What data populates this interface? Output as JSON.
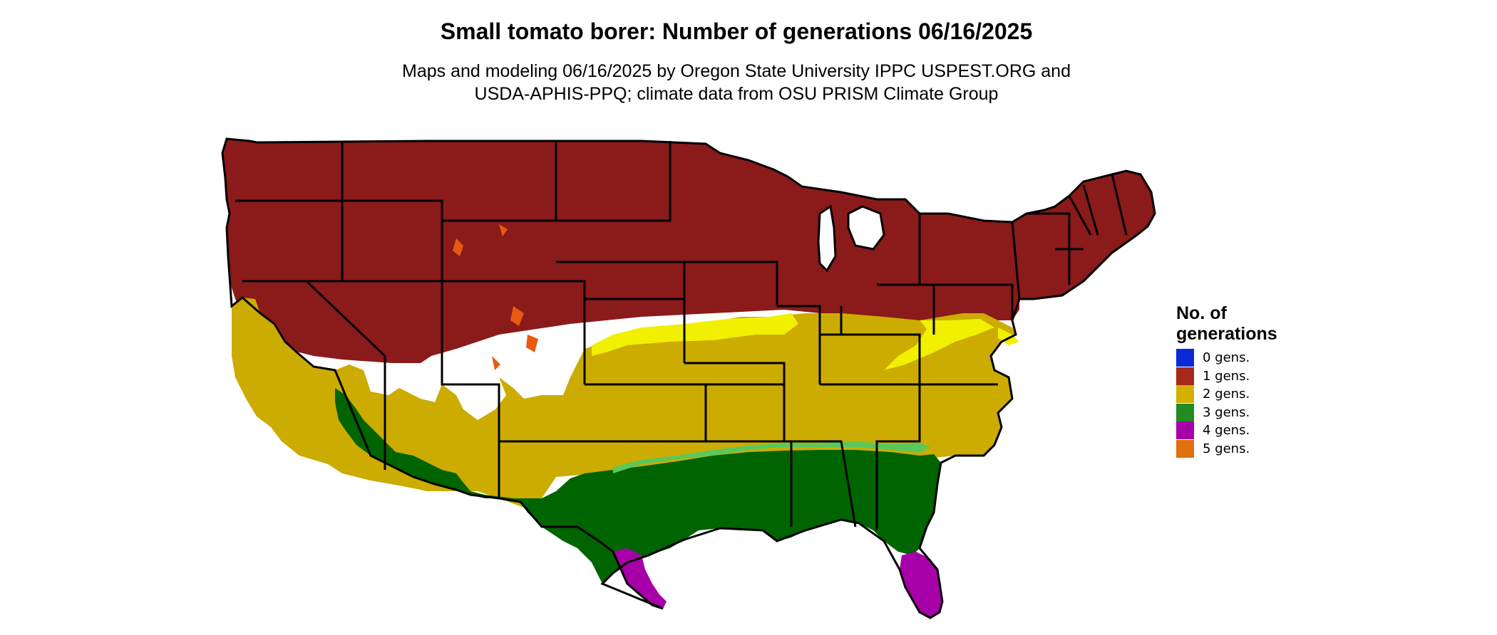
{
  "title": "Small tomato borer: Number of generations 06/16/2025",
  "subtitle_line1": "Maps and modeling 06/16/2025 by Oregon State University IPPC USPEST.ORG and",
  "subtitle_line2": "USDA-APHIS-PPQ; climate data from OSU PRISM Climate Group",
  "legend": {
    "title_line1": "No. of",
    "title_line2": "generations",
    "items": [
      {
        "label": "0 gens.",
        "color": "#0a2ad8"
      },
      {
        "label": "1 gens.",
        "color": "#a52a1c"
      },
      {
        "label": "2 gens.",
        "color": "#d4b000"
      },
      {
        "label": "3 gens.",
        "color": "#228b22"
      },
      {
        "label": "4 gens.",
        "color": "#a800a8"
      },
      {
        "label": "5 gens.",
        "color": "#e07010"
      }
    ]
  },
  "map_colors": {
    "one_gen": "#8b1a1a",
    "two_gen": "#ccac00",
    "two_gen_light": "#f0f000",
    "three_gen": "#006400",
    "three_gen_light": "#5ac85a",
    "four_gen": "#a800a8",
    "four_gen_light": "#e040e0",
    "five_gen": "#e85a10",
    "border": "#000000"
  }
}
